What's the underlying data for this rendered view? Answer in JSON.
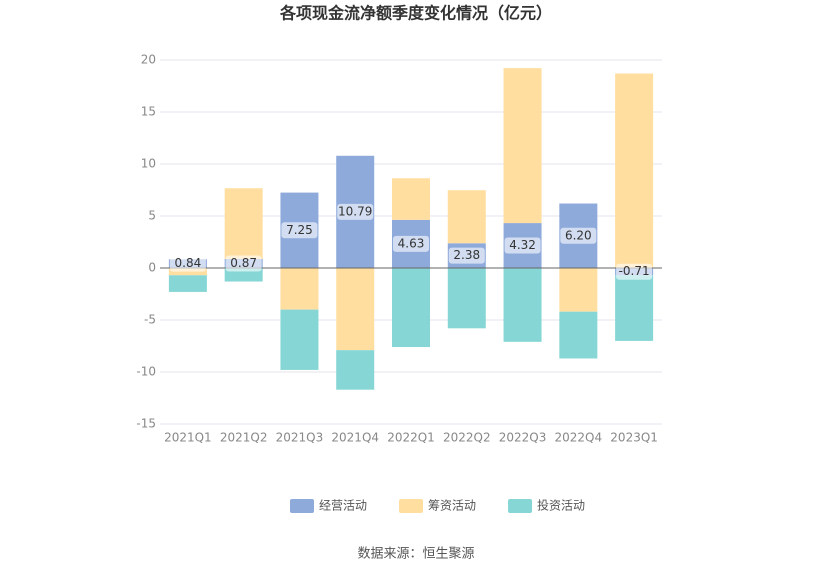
{
  "chart_data": {
    "type": "bar",
    "stacked": true,
    "title": "各项现金流净额季度变化情况（亿元）",
    "categories": [
      "2021Q1",
      "2021Q2",
      "2021Q3",
      "2021Q4",
      "2022Q1",
      "2022Q2",
      "2022Q3",
      "2022Q4",
      "2023Q1"
    ],
    "series": [
      {
        "name": "经营活动",
        "color": "#8eaadb",
        "values": [
          0.84,
          0.87,
          7.25,
          10.79,
          4.63,
          2.38,
          4.32,
          6.2,
          -0.71
        ],
        "value_labels": [
          "0.84",
          "0.87",
          "7.25",
          "10.79",
          "4.63",
          "2.38",
          "4.32",
          "6.20",
          "-0.71"
        ]
      },
      {
        "name": "筹资活动",
        "color": "#ffdea0",
        "values": [
          -0.7,
          6.8,
          -4.0,
          -7.9,
          4.0,
          5.1,
          14.9,
          -4.2,
          18.7
        ]
      },
      {
        "name": "投资活动",
        "color": "#86d6d6",
        "values": [
          -1.6,
          -1.3,
          -5.8,
          -3.8,
          -7.6,
          -5.8,
          -7.1,
          -4.5,
          -6.3
        ]
      }
    ],
    "ylim": [
      -15,
      20
    ],
    "yticks": [
      -15,
      -10,
      -5,
      0,
      5,
      10,
      15,
      20
    ],
    "grid": true,
    "legend": "bottom",
    "source": "数据来源：恒生聚源"
  }
}
